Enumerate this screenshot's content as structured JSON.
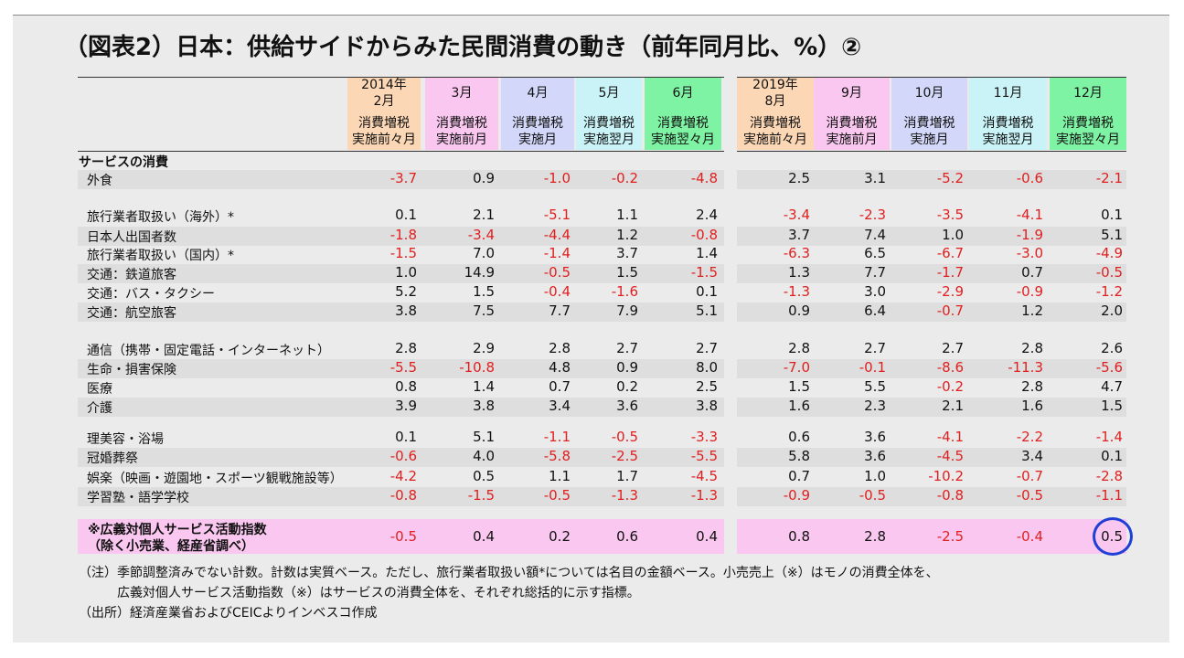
{
  "title": "（図表2）日本：供給サイドからみた民間消費の動き（前年同月比、%）②",
  "columns": [
    {
      "month": "2014年\n2月",
      "sub": "消費増税\n実施前々月",
      "color": "#fbd7b5"
    },
    {
      "month": "3月",
      "sub": "消費増税\n実施前月",
      "color": "#f9c7ef"
    },
    {
      "month": "4月",
      "sub": "消費増税\n実施月",
      "color": "#d3d8fa"
    },
    {
      "month": "5月",
      "sub": "消費増税\n実施翌月",
      "color": "#c9f3f7"
    },
    {
      "month": "6月",
      "sub": "消費増税\n実施翌々月",
      "color": "#7ff3a4"
    },
    {
      "month": "2019年\n8月",
      "sub": "消費増税\n実施前々月",
      "color": "#fbd7b5"
    },
    {
      "month": "9月",
      "sub": "消費増税\n実施前月",
      "color": "#f9c7ef"
    },
    {
      "month": "10月",
      "sub": "消費増税\n実施月",
      "color": "#d3d8fa"
    },
    {
      "month": "11月",
      "sub": "消費増税\n実施翌月",
      "color": "#c9f3f7"
    },
    {
      "month": "12月",
      "sub": "消費増税\n実施翌々月",
      "color": "#7ff3a4"
    }
  ],
  "section_label": "サービスの消費",
  "rows": [
    {
      "label": "外食",
      "values": [
        "-3.7",
        "0.9",
        "-1.0",
        "-0.2",
        "-4.8",
        "2.5",
        "3.1",
        "-5.2",
        "-0.6",
        "-2.1"
      ]
    },
    {
      "label": "旅行業者取扱い（海外）*",
      "values": [
        "0.1",
        "2.1",
        "-5.1",
        "1.1",
        "2.4",
        "-3.4",
        "-2.3",
        "-3.5",
        "-4.1",
        "0.1"
      ]
    },
    {
      "label": "日本人出国者数",
      "values": [
        "-1.8",
        "-3.4",
        "-4.4",
        "1.2",
        "-0.8",
        "3.7",
        "7.4",
        "1.0",
        "-1.9",
        "5.1"
      ]
    },
    {
      "label": "旅行業者取扱い（国内）*",
      "values": [
        "-1.5",
        "7.0",
        "-1.4",
        "3.7",
        "1.4",
        "-6.3",
        "6.5",
        "-6.7",
        "-3.0",
        "-4.9"
      ]
    },
    {
      "label": "交通：鉄道旅客",
      "values": [
        "1.0",
        "14.9",
        "-0.5",
        "1.5",
        "-1.5",
        "1.3",
        "7.7",
        "-1.7",
        "0.7",
        "-0.5"
      ]
    },
    {
      "label": "交通：バス・タクシー",
      "values": [
        "5.2",
        "1.5",
        "-0.4",
        "-1.6",
        "0.1",
        "-1.3",
        "3.0",
        "-2.9",
        "-0.9",
        "-1.2"
      ]
    },
    {
      "label": "交通：航空旅客",
      "values": [
        "3.8",
        "7.5",
        "7.7",
        "7.9",
        "5.1",
        "0.9",
        "6.4",
        "-0.7",
        "1.2",
        "2.0"
      ]
    },
    {
      "label": "通信（携帯・固定電話・インターネット）",
      "values": [
        "2.8",
        "2.9",
        "2.8",
        "2.7",
        "2.7",
        "2.8",
        "2.7",
        "2.7",
        "2.8",
        "2.6"
      ]
    },
    {
      "label": "生命・損害保険",
      "values": [
        "-5.5",
        "-10.8",
        "4.8",
        "0.9",
        "8.0",
        "-7.0",
        "-0.1",
        "-8.6",
        "-11.3",
        "-5.6"
      ]
    },
    {
      "label": "医療",
      "values": [
        "0.8",
        "1.4",
        "0.7",
        "0.2",
        "2.5",
        "1.5",
        "5.5",
        "-0.2",
        "2.8",
        "4.7"
      ]
    },
    {
      "label": "介護",
      "values": [
        "3.9",
        "3.8",
        "3.4",
        "3.6",
        "3.8",
        "1.6",
        "2.3",
        "2.1",
        "1.6",
        "1.5"
      ]
    },
    {
      "label": "理美容・浴場",
      "values": [
        "0.1",
        "5.1",
        "-1.1",
        "-0.5",
        "-3.3",
        "0.6",
        "3.6",
        "-4.1",
        "-2.2",
        "-1.4"
      ]
    },
    {
      "label": "冠婚葬祭",
      "values": [
        "-0.6",
        "4.0",
        "-5.8",
        "-2.5",
        "-5.5",
        "5.8",
        "3.6",
        "-4.5",
        "3.4",
        "0.1"
      ]
    },
    {
      "label": "娯楽（映画・遊園地・スポーツ観戦施設等）",
      "values": [
        "-4.2",
        "0.5",
        "1.1",
        "1.7",
        "-4.5",
        "0.7",
        "1.0",
        "-10.2",
        "-0.7",
        "-2.8"
      ]
    },
    {
      "label": "学習塾・語学学校",
      "values": [
        "-0.8",
        "-1.5",
        "-0.5",
        "-1.3",
        "-1.3",
        "-0.9",
        "-0.5",
        "-0.8",
        "-0.5",
        "-1.1"
      ]
    }
  ],
  "summary": {
    "label_line1": "※広義対個人サービス活動指数",
    "label_line2": "（除く小売業、経産省調べ）",
    "values": [
      "-0.5",
      "0.4",
      "0.2",
      "0.6",
      "0.4",
      "0.8",
      "2.8",
      "-2.5",
      "-0.4",
      "0.5"
    ],
    "highlight_color": "#f9c7ef",
    "circle_color": "#1f3fd6"
  },
  "notes": {
    "line1": "（注）季節調整済みでない計数。計数は実質ベース。ただし、旅行業者取扱い額*については名目の金額ベース。小売売上（※）はモノの消費全体を、",
    "line2": "広義対個人サービス活動指数（※）はサービスの消費全体を、それぞれ総括的に示す指標。",
    "line3": "（出所）経済産業省およびCEICよりインベスコ作成"
  },
  "negative_color": "#e02020"
}
